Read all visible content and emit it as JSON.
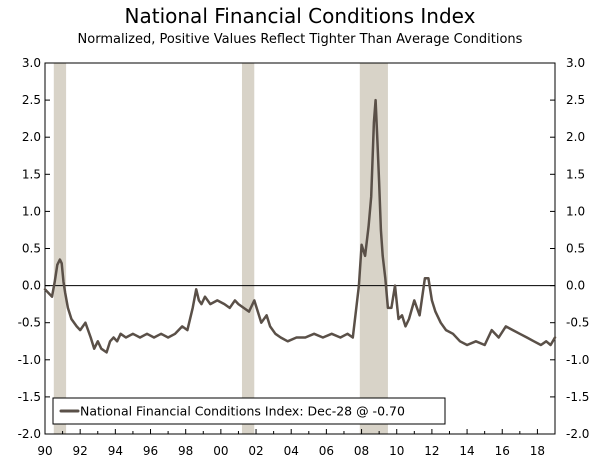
{
  "chart_data": {
    "type": "line",
    "title": "National Financial Conditions Index",
    "subtitle": "Normalized, Positive Values Reflect Tighter Than Average Conditions",
    "xlabel": "",
    "ylabel": "",
    "xlim": [
      1990,
      2019
    ],
    "ylim": [
      -2.0,
      3.0
    ],
    "x_tick_values": [
      1990,
      1992,
      1994,
      1996,
      1998,
      2000,
      2002,
      2004,
      2006,
      2008,
      2010,
      2012,
      2014,
      2016,
      2018
    ],
    "x_tick_labels": [
      "90",
      "92",
      "94",
      "96",
      "98",
      "00",
      "02",
      "04",
      "06",
      "08",
      "10",
      "12",
      "14",
      "16",
      "18"
    ],
    "y_ticks": [
      3.0,
      2.5,
      2.0,
      1.5,
      1.0,
      0.5,
      0.0,
      -0.5,
      -1.0,
      -1.5,
      -2.0
    ],
    "y_tick_labels": [
      "3.0",
      "2.5",
      "2.0",
      "1.5",
      "1.0",
      "0.5",
      "0.0",
      "-0.5",
      "-1.0",
      "-1.5",
      "-2.0"
    ],
    "recessions": [
      [
        1990.5,
        1991.2
      ],
      [
        2001.2,
        2001.9
      ],
      [
        2007.9,
        2009.5
      ]
    ],
    "legend": {
      "label": "National Financial Conditions Index: Dec-28 @ -0.70",
      "position": "bottom-left"
    },
    "series": [
      {
        "name": "National Financial Conditions Index",
        "color": "#5a5048",
        "x": [
          1990.0,
          1990.2,
          1990.4,
          1990.55,
          1990.7,
          1990.85,
          1990.95,
          1991.05,
          1991.15,
          1991.3,
          1991.5,
          1991.8,
          1992.0,
          1992.3,
          1992.6,
          1992.8,
          1993.0,
          1993.2,
          1993.5,
          1993.7,
          1993.9,
          1994.1,
          1994.3,
          1994.6,
          1995.0,
          1995.4,
          1995.8,
          1996.2,
          1996.6,
          1997.0,
          1997.4,
          1997.8,
          1998.1,
          1998.4,
          1998.6,
          1998.75,
          1998.9,
          1999.1,
          1999.4,
          1999.8,
          2000.2,
          2000.5,
          2000.8,
          2001.0,
          2001.3,
          2001.6,
          2001.9,
          2002.3,
          2002.6,
          2002.8,
          2003.1,
          2003.4,
          2003.8,
          2004.3,
          2004.8,
          2005.3,
          2005.8,
          2006.3,
          2006.8,
          2007.2,
          2007.5,
          2007.7,
          2007.85,
          2008.0,
          2008.2,
          2008.4,
          2008.55,
          2008.7,
          2008.8,
          2008.9,
          2009.0,
          2009.1,
          2009.2,
          2009.35,
          2009.5,
          2009.7,
          2009.9,
          2010.1,
          2010.3,
          2010.5,
          2010.7,
          2011.0,
          2011.3,
          2011.6,
          2011.8,
          2012.0,
          2012.2,
          2012.5,
          2012.8,
          2013.2,
          2013.6,
          2014.0,
          2014.5,
          2015.0,
          2015.4,
          2015.8,
          2016.2,
          2016.6,
          2017.0,
          2017.4,
          2017.8,
          2018.2,
          2018.5,
          2018.75,
          2019.0
        ],
        "values": [
          -0.05,
          -0.1,
          -0.15,
          0.05,
          0.28,
          0.35,
          0.3,
          0.05,
          -0.1,
          -0.3,
          -0.45,
          -0.55,
          -0.6,
          -0.5,
          -0.7,
          -0.85,
          -0.75,
          -0.85,
          -0.9,
          -0.75,
          -0.7,
          -0.75,
          -0.65,
          -0.7,
          -0.65,
          -0.7,
          -0.65,
          -0.7,
          -0.65,
          -0.7,
          -0.65,
          -0.55,
          -0.6,
          -0.3,
          -0.05,
          -0.2,
          -0.25,
          -0.15,
          -0.25,
          -0.2,
          -0.25,
          -0.3,
          -0.2,
          -0.25,
          -0.3,
          -0.35,
          -0.2,
          -0.5,
          -0.4,
          -0.55,
          -0.65,
          -0.7,
          -0.75,
          -0.7,
          -0.7,
          -0.65,
          -0.7,
          -0.65,
          -0.7,
          -0.65,
          -0.7,
          -0.3,
          0.0,
          0.55,
          0.4,
          0.8,
          1.2,
          2.2,
          2.5,
          1.95,
          1.4,
          0.75,
          0.4,
          0.1,
          -0.3,
          -0.3,
          0.0,
          -0.45,
          -0.4,
          -0.55,
          -0.45,
          -0.2,
          -0.4,
          0.1,
          0.1,
          -0.2,
          -0.35,
          -0.5,
          -0.6,
          -0.65,
          -0.75,
          -0.8,
          -0.75,
          -0.8,
          -0.6,
          -0.7,
          -0.55,
          -0.6,
          -0.65,
          -0.7,
          -0.75,
          -0.8,
          -0.75,
          -0.8,
          -0.7
        ]
      }
    ]
  }
}
